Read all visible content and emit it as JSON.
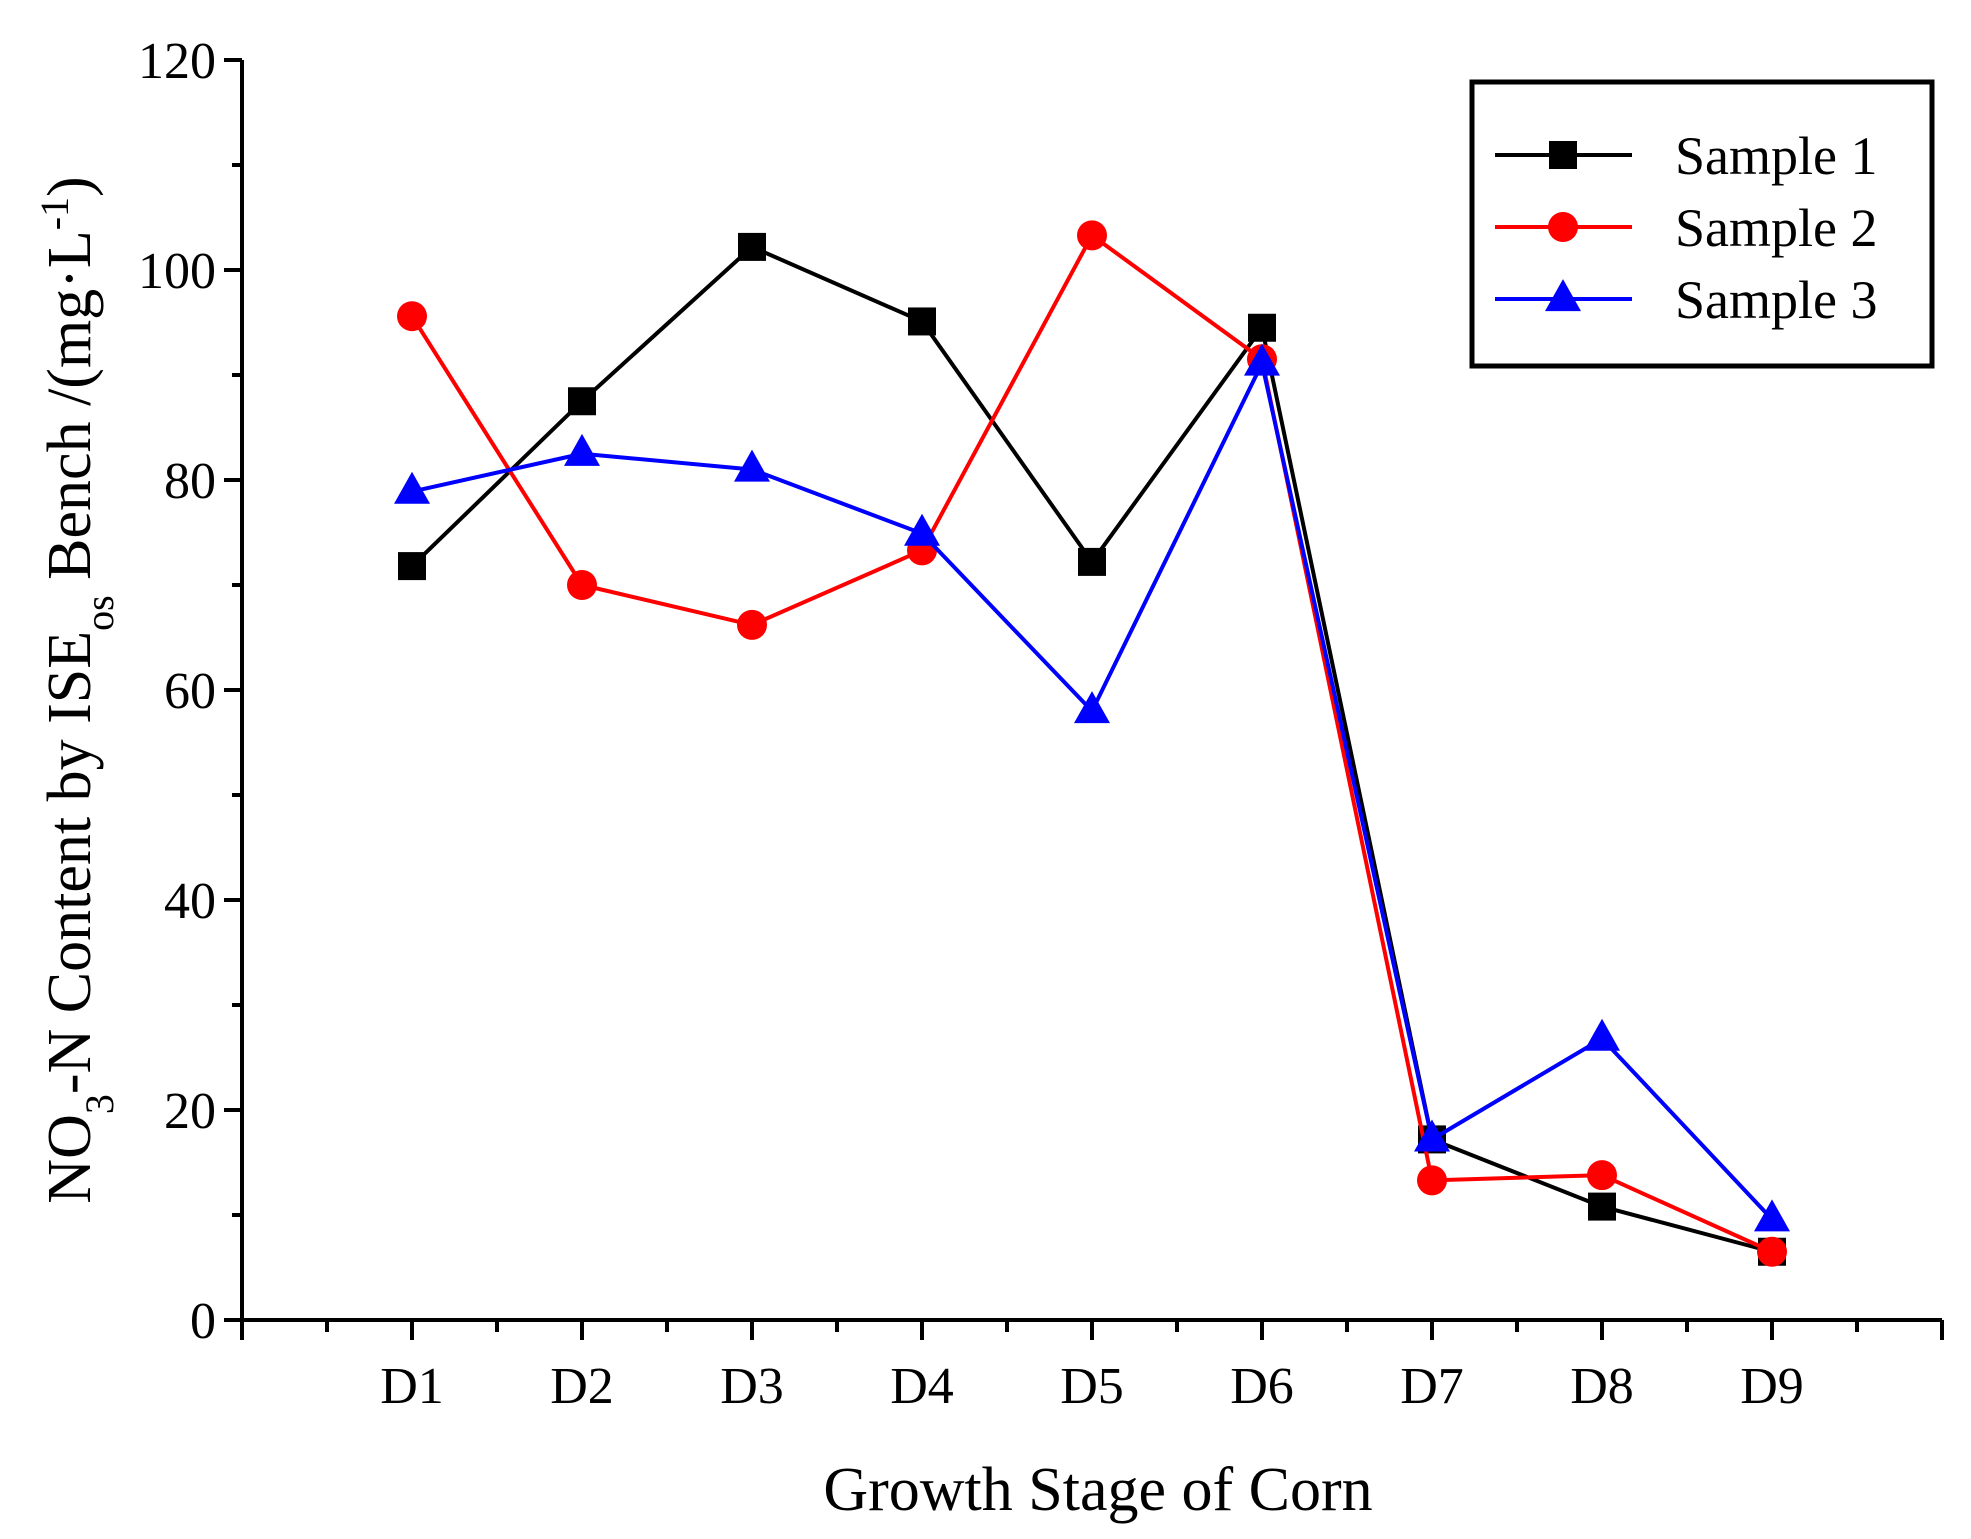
{
  "chart_data": {
    "type": "line",
    "title": "",
    "xlabel": "Growth Stage of Corn",
    "ylabel": {
      "prefix": "NO",
      "sub1": "3",
      "mid": "-N Content by ISE",
      "sub2": "os",
      "suffix": " Bench /(mg·L",
      "sup": "-1",
      "end": ")"
    },
    "categories": [
      "D1",
      "D2",
      "D3",
      "D4",
      "D5",
      "D6",
      "D7",
      "D8",
      "D9"
    ],
    "ylim": [
      0,
      120
    ],
    "yticks": [
      0,
      20,
      40,
      60,
      80,
      100,
      120
    ],
    "yticklabels": [
      "0",
      "20",
      "40",
      "60",
      "80",
      "100",
      "120"
    ],
    "legend_position": "top-right",
    "series": [
      {
        "name": "Sample 1",
        "color": "#000000",
        "marker": "square",
        "values": [
          71.8,
          87.5,
          102.2,
          95.1,
          72.2,
          94.5,
          17.2,
          10.8,
          6.5
        ]
      },
      {
        "name": "Sample 2",
        "color": "#ff0000",
        "marker": "circle",
        "values": [
          95.6,
          70.0,
          66.2,
          73.3,
          103.3,
          91.5,
          13.3,
          13.8,
          6.5
        ]
      },
      {
        "name": "Sample 3",
        "color": "#0000ff",
        "marker": "triangle",
        "values": [
          78.9,
          82.5,
          81.0,
          74.9,
          58.0,
          91.1,
          17.2,
          26.8,
          9.6
        ]
      }
    ]
  }
}
